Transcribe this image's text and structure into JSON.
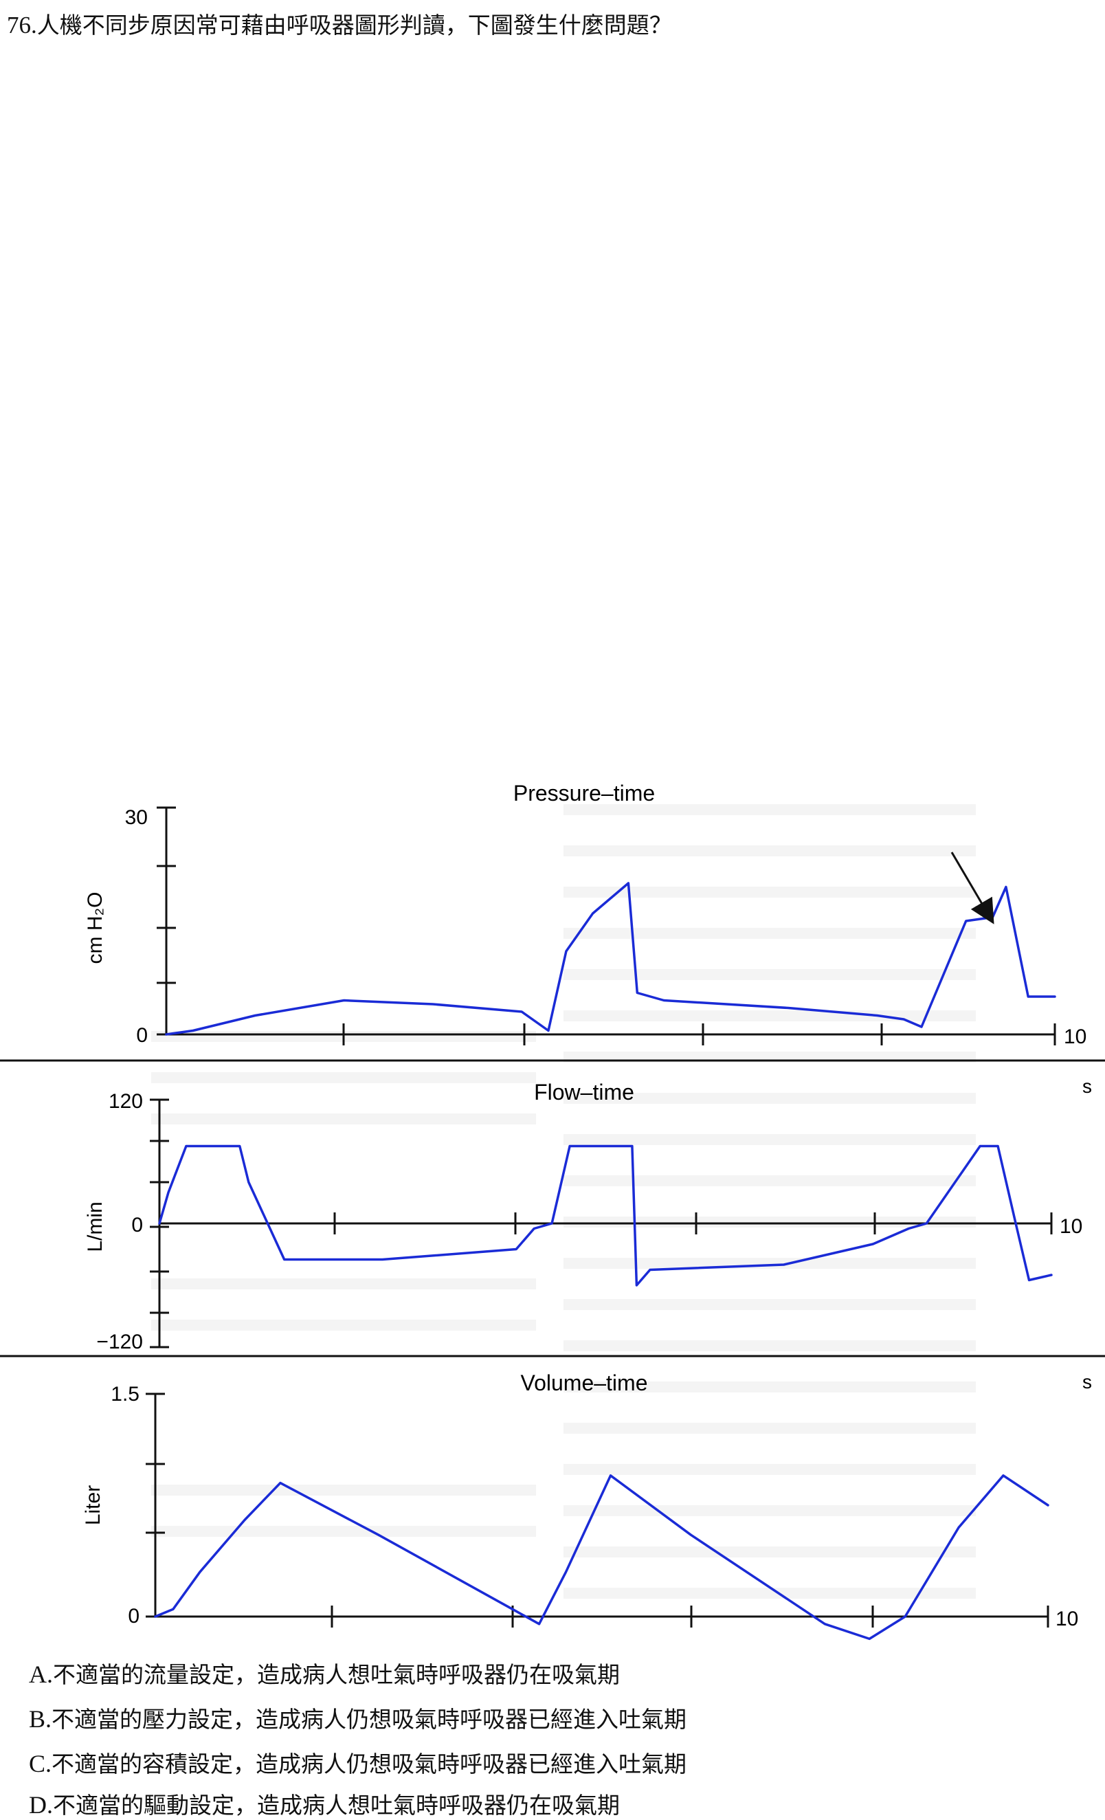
{
  "question": {
    "number": "76.",
    "text": "人機不同步原因常可藉由呼吸器圖形判讀，下圖發生什麼問題？"
  },
  "figure": {
    "panels": [
      {
        "title": "Pressure–time",
        "ylabel": "cm H₂O",
        "yticks": [
          "30",
          "0"
        ],
        "xend": "10",
        "unit": "s"
      },
      {
        "title": "Flow–time",
        "ylabel": "L/min",
        "yticks": [
          "120",
          "0",
          "−120"
        ],
        "xend": "10",
        "unit": "s"
      },
      {
        "title": "Volume–time",
        "ylabel": "Liter",
        "yticks": [
          "1.5",
          "0"
        ],
        "xend": "10"
      }
    ],
    "arrow": "pointing to plateau of second pressure breath"
  },
  "chart_data": [
    {
      "type": "line",
      "title": "Pressure–time",
      "ylabel": "cm H₂O",
      "xlabel": "s",
      "ylim": [
        0,
        30
      ],
      "xlim": [
        0,
        10
      ],
      "x": [
        0,
        0.3,
        1,
        2,
        3,
        4,
        4.3,
        4.5,
        4.8,
        5.2,
        5.3,
        5.6,
        7,
        8,
        8.3,
        8.5,
        9,
        9.3,
        9.45,
        9.7,
        10
      ],
      "values": [
        0,
        0.5,
        2.5,
        4.5,
        4,
        3,
        0.5,
        11,
        16,
        20,
        5.5,
        4.5,
        3.5,
        2.5,
        2,
        1,
        15,
        15.5,
        19.5,
        5,
        5
      ]
    },
    {
      "type": "line",
      "title": "Flow–time",
      "ylabel": "L/min",
      "xlabel": "s",
      "ylim": [
        -120,
        120
      ],
      "xlim": [
        0,
        10
      ],
      "x": [
        0,
        0.1,
        0.3,
        0.9,
        1,
        1.4,
        2.5,
        4,
        4.2,
        4.4,
        4.6,
        5.3,
        5.35,
        5.5,
        7,
        8,
        8.4,
        8.6,
        9.2,
        9.4,
        9.6,
        9.75,
        10
      ],
      "values": [
        0,
        30,
        75,
        75,
        40,
        -35,
        -35,
        -25,
        -5,
        0,
        75,
        75,
        -60,
        -45,
        -40,
        -20,
        -5,
        0,
        75,
        75,
        0,
        -55,
        -50
      ]
    },
    {
      "type": "line",
      "title": "Volume–time",
      "ylabel": "Liter",
      "xlabel": "s",
      "ylim": [
        0,
        1.5
      ],
      "xlim": [
        0,
        10
      ],
      "x": [
        0,
        0.2,
        0.5,
        1,
        1.4,
        2.5,
        4,
        4.3,
        4.6,
        5.1,
        6,
        7.5,
        8,
        8.4,
        9,
        9.5,
        10
      ],
      "values": [
        0,
        0.05,
        0.3,
        0.65,
        0.9,
        0.55,
        0.05,
        -0.05,
        0.3,
        0.95,
        0.55,
        -0.05,
        -0.15,
        0,
        0.6,
        0.95,
        0.75
      ]
    }
  ],
  "options": [
    {
      "letter": "A.",
      "text": "不適當的流量設定，造成病人想吐氣時呼吸器仍在吸氣期"
    },
    {
      "letter": "B.",
      "text": "不適當的壓力設定，造成病人仍想吸氣時呼吸器已經進入吐氣期"
    },
    {
      "letter": "C.",
      "text": "不適當的容積設定，造成病人仍想吸氣時呼吸器已經進入吐氣期"
    },
    {
      "letter": "D.",
      "text": "不適當的驅動設定，造成病人想吐氣時呼吸器仍在吸氣期"
    }
  ],
  "colors": {
    "trace": "#1a2bd6",
    "axis": "#111111",
    "background": "#ffffff"
  }
}
